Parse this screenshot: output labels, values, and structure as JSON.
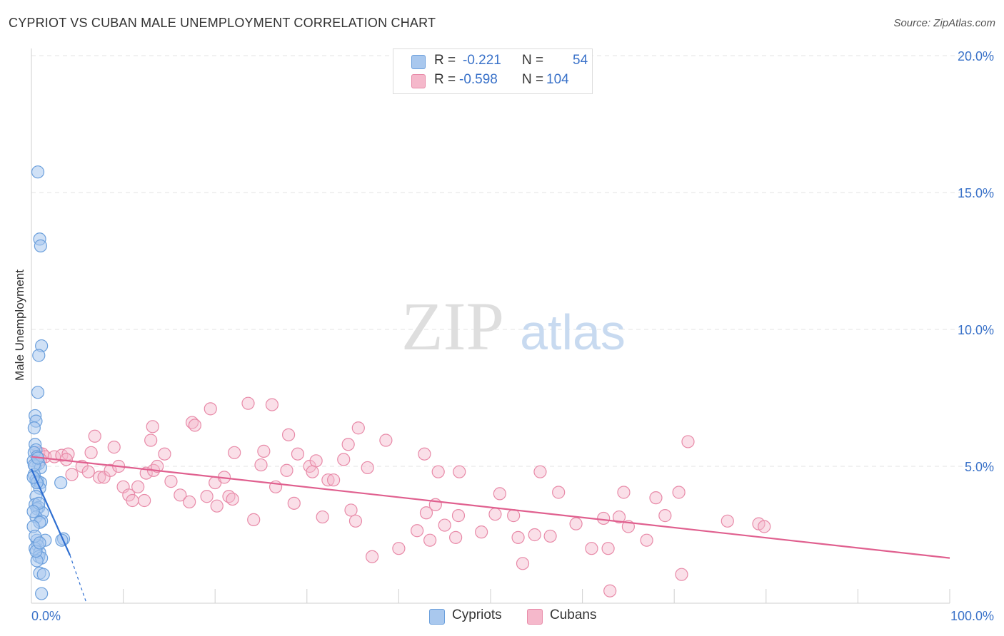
{
  "header": {
    "title": "CYPRIOT VS CUBAN MALE UNEMPLOYMENT CORRELATION CHART",
    "source": "Source: ZipAtlas.com"
  },
  "watermark": {
    "zip": "ZIP",
    "atlas": "atlas"
  },
  "stats": {
    "rows": [
      {
        "r_label": "R =",
        "r_value": "-0.221",
        "n_label": "N =",
        "n_value": "54"
      },
      {
        "r_label": "R =",
        "r_value": "-0.598",
        "n_label": "N =",
        "n_value": "104"
      }
    ]
  },
  "legend": {
    "cypriots": "Cypriots",
    "cubans": "Cubans"
  },
  "colors": {
    "cypriots_fill": "#a9c8ee",
    "cypriots_stroke": "#6b9fdc",
    "cypriots_line": "#2f6fd1",
    "cubans_fill": "#f5b8cb",
    "cubans_stroke": "#e88aa8",
    "cubans_line": "#e0608f",
    "tick_label": "#3a72c9",
    "grid": "#e3e3e3"
  },
  "chart_data": {
    "type": "scatter",
    "title": "CYPRIOT VS CUBAN MALE UNEMPLOYMENT CORRELATION CHART",
    "xlabel": "",
    "ylabel": "Male Unemployment",
    "xlim": [
      0,
      100
    ],
    "ylim": [
      0,
      20
    ],
    "x_tick_labels": [
      "0.0%",
      "100.0%"
    ],
    "y_ticks": [
      5,
      10,
      15,
      20
    ],
    "y_tick_labels": [
      "5.0%",
      "10.0%",
      "15.0%",
      "20.0%"
    ],
    "series": [
      {
        "name": "Cypriots",
        "r": -0.221,
        "n": 54,
        "trend": {
          "x0": 0,
          "y0": 4.9,
          "x1": 4.2,
          "y1": 1.75,
          "dash_to_x": 6.0,
          "dash_to_y": 0.0
        },
        "points": [
          [
            0.7,
            15.75
          ],
          [
            0.9,
            13.3
          ],
          [
            1.0,
            13.05
          ],
          [
            1.1,
            9.4
          ],
          [
            0.8,
            9.05
          ],
          [
            0.7,
            7.7
          ],
          [
            0.4,
            6.85
          ],
          [
            0.5,
            6.65
          ],
          [
            0.3,
            6.4
          ],
          [
            0.4,
            5.8
          ],
          [
            0.5,
            5.6
          ],
          [
            0.3,
            5.5
          ],
          [
            0.6,
            5.35
          ],
          [
            0.2,
            5.2
          ],
          [
            0.8,
            5.1
          ],
          [
            0.4,
            5.0
          ],
          [
            1.0,
            4.95
          ],
          [
            0.3,
            4.7
          ],
          [
            0.5,
            4.5
          ],
          [
            0.7,
            4.45
          ],
          [
            1.0,
            4.4
          ],
          [
            3.2,
            4.4
          ],
          [
            0.9,
            4.2
          ],
          [
            0.5,
            3.9
          ],
          [
            0.4,
            3.6
          ],
          [
            0.8,
            3.5
          ],
          [
            0.6,
            3.45
          ],
          [
            1.2,
            3.3
          ],
          [
            0.5,
            3.15
          ],
          [
            1.1,
            3.0
          ],
          [
            0.9,
            2.95
          ],
          [
            0.2,
            2.8
          ],
          [
            1.5,
            2.3
          ],
          [
            3.5,
            2.35
          ],
          [
            3.3,
            2.3
          ],
          [
            0.6,
            2.3
          ],
          [
            0.7,
            2.1
          ],
          [
            0.4,
            2.0
          ],
          [
            0.9,
            1.85
          ],
          [
            0.8,
            1.7
          ],
          [
            1.1,
            1.65
          ],
          [
            0.6,
            1.55
          ],
          [
            0.9,
            1.1
          ],
          [
            1.3,
            1.05
          ],
          [
            1.1,
            0.35
          ],
          [
            0.3,
            5.05
          ],
          [
            0.6,
            4.4
          ],
          [
            0.2,
            4.6
          ],
          [
            0.8,
            3.65
          ],
          [
            0.4,
            2.45
          ],
          [
            0.5,
            1.9
          ],
          [
            0.9,
            2.2
          ],
          [
            0.2,
            3.35
          ],
          [
            0.7,
            5.3
          ]
        ]
      },
      {
        "name": "Cubans",
        "r": -0.598,
        "n": 104,
        "trend": {
          "x0": 0,
          "y0": 5.35,
          "x1": 100,
          "y1": 1.65
        },
        "points": [
          [
            0.8,
            5.5
          ],
          [
            1.2,
            5.45
          ],
          [
            1.5,
            5.35
          ],
          [
            1.0,
            5.25
          ],
          [
            2.5,
            5.35
          ],
          [
            3.3,
            5.4
          ],
          [
            4.0,
            5.45
          ],
          [
            6.5,
            5.5
          ],
          [
            3.8,
            5.25
          ],
          [
            6.9,
            6.1
          ],
          [
            9.0,
            5.7
          ],
          [
            13.2,
            6.45
          ],
          [
            13.0,
            5.95
          ],
          [
            14.5,
            5.45
          ],
          [
            17.5,
            6.6
          ],
          [
            17.8,
            6.5
          ],
          [
            19.5,
            7.1
          ],
          [
            22.1,
            5.5
          ],
          [
            23.6,
            7.3
          ],
          [
            25.3,
            5.55
          ],
          [
            26.2,
            7.25
          ],
          [
            28.0,
            6.15
          ],
          [
            29.0,
            5.45
          ],
          [
            30.3,
            5.0
          ],
          [
            31.0,
            5.2
          ],
          [
            34.0,
            5.25
          ],
          [
            34.5,
            5.8
          ],
          [
            35.6,
            6.4
          ],
          [
            36.6,
            4.95
          ],
          [
            38.6,
            5.95
          ],
          [
            42.8,
            5.45
          ],
          [
            44.3,
            4.8
          ],
          [
            46.6,
            4.8
          ],
          [
            70.5,
            4.05
          ],
          [
            71.5,
            5.9
          ],
          [
            4.4,
            4.7
          ],
          [
            5.5,
            5.0
          ],
          [
            6.2,
            4.8
          ],
          [
            7.4,
            4.6
          ],
          [
            7.9,
            4.6
          ],
          [
            8.6,
            4.85
          ],
          [
            9.5,
            5.0
          ],
          [
            10.0,
            4.25
          ],
          [
            10.6,
            3.95
          ],
          [
            11.0,
            3.75
          ],
          [
            11.6,
            4.25
          ],
          [
            12.3,
            3.75
          ],
          [
            12.5,
            4.75
          ],
          [
            13.3,
            4.85
          ],
          [
            13.7,
            5.0
          ],
          [
            15.2,
            4.45
          ],
          [
            16.2,
            3.95
          ],
          [
            17.2,
            3.7
          ],
          [
            19.1,
            3.9
          ],
          [
            20.0,
            4.4
          ],
          [
            20.2,
            3.55
          ],
          [
            21.0,
            4.6
          ],
          [
            21.5,
            3.9
          ],
          [
            21.9,
            3.8
          ],
          [
            24.2,
            3.05
          ],
          [
            25.0,
            5.05
          ],
          [
            26.6,
            4.25
          ],
          [
            27.8,
            4.85
          ],
          [
            28.6,
            3.65
          ],
          [
            30.6,
            4.8
          ],
          [
            31.7,
            3.15
          ],
          [
            32.3,
            4.5
          ],
          [
            32.9,
            4.5
          ],
          [
            34.8,
            3.4
          ],
          [
            35.3,
            3.0
          ],
          [
            37.1,
            1.7
          ],
          [
            40.0,
            2.0
          ],
          [
            42.0,
            2.65
          ],
          [
            43.0,
            3.3
          ],
          [
            43.4,
            2.3
          ],
          [
            44.0,
            3.6
          ],
          [
            45.0,
            2.85
          ],
          [
            46.2,
            2.4
          ],
          [
            46.5,
            3.2
          ],
          [
            49.0,
            2.6
          ],
          [
            50.5,
            3.25
          ],
          [
            51.0,
            4.0
          ],
          [
            52.5,
            3.2
          ],
          [
            53.0,
            2.4
          ],
          [
            53.5,
            1.45
          ],
          [
            54.8,
            2.5
          ],
          [
            55.4,
            4.8
          ],
          [
            56.5,
            2.45
          ],
          [
            57.4,
            4.05
          ],
          [
            59.3,
            2.9
          ],
          [
            61.0,
            2.0
          ],
          [
            62.3,
            3.1
          ],
          [
            62.8,
            2.0
          ],
          [
            63.0,
            0.45
          ],
          [
            64.0,
            3.15
          ],
          [
            64.5,
            4.05
          ],
          [
            65.0,
            2.8
          ],
          [
            67.0,
            2.3
          ],
          [
            68.0,
            3.85
          ],
          [
            69.0,
            3.2
          ],
          [
            70.8,
            1.05
          ],
          [
            75.8,
            3.0
          ],
          [
            79.2,
            2.9
          ],
          [
            79.8,
            2.8
          ]
        ]
      }
    ]
  }
}
